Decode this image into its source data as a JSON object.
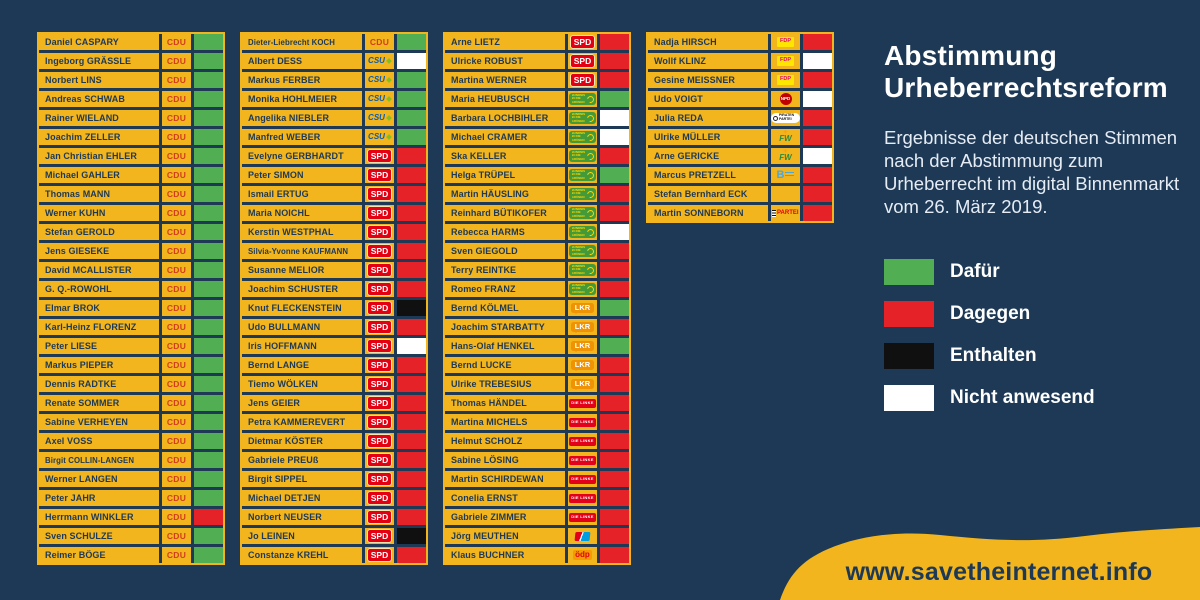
{
  "theme": {
    "background": "#1d3956",
    "yellow": "#f2b51e",
    "text_navy": "#1d3956"
  },
  "header": {
    "title_line1": "Abstimmung",
    "title_line2": "Urheberrechtsreform",
    "subtitle": "Ergebnisse der deutschen Stimmen nach der Abstimmung zum Urheberrecht im digital Binnenmarkt vom 26. März 2019."
  },
  "legend": [
    {
      "key": "dafuer",
      "label": "Dafür"
    },
    {
      "key": "dagegen",
      "label": "Dagegen"
    },
    {
      "key": "enthalten",
      "label": "Enthalten"
    },
    {
      "key": "nicht_anwesend",
      "label": "Nicht anwesend"
    }
  ],
  "vote_colors": {
    "dafuer": "#52ae52",
    "dagegen": "#e52228",
    "enthalten": "#101010",
    "nicht_anwesend": "#ffffff"
  },
  "footer": {
    "url": "www.savetheinternet.info"
  },
  "parties": {
    "CDU": {
      "label": "CDU",
      "icon": "cdu-text-logo"
    },
    "CSU": {
      "label": "CSU",
      "icon": "csu-text-logo"
    },
    "SPD": {
      "label": "SPD",
      "icon": "spd-box-logo"
    },
    "GRUENE": {
      "label": "BÜNDNIS 90 DIE GRÜNEN",
      "icon": "gruene-sunflower-logo"
    },
    "LKR": {
      "label": "LKR",
      "icon": "lkr-bubble-logo"
    },
    "LINKE": {
      "label": "DIE LINKE",
      "icon": "linke-box-logo"
    },
    "AFD": {
      "label": "",
      "icon": "afd-logo"
    },
    "OEDP": {
      "label": "ödp",
      "icon": "oedp-box-logo"
    },
    "FDP": {
      "label": "FDP",
      "icon": "fdp-box-logo"
    },
    "NPD": {
      "label": "NPD",
      "icon": "npd-circle-logo"
    },
    "PIRATEN": {
      "label": "PIRATEN PARTEI",
      "icon": "piraten-logo"
    },
    "FW": {
      "label": "FW",
      "icon": "freie-waehler-logo"
    },
    "BLAUE": {
      "label": "B",
      "icon": "blaue-partei-logo"
    },
    "PARTEI": {
      "label": "PARTEI",
      "icon": "die-partei-logo"
    }
  },
  "chart_data": {
    "type": "table",
    "title": "Abstimmung Urheberrechtsreform",
    "vote_key": {
      "dafuer": "Dafür",
      "dagegen": "Dagegen",
      "enthalten": "Enthalten",
      "nicht_anwesend": "Nicht anwesend"
    },
    "columns": [
      {
        "rows": [
          {
            "name": "Daniel CASPARY",
            "party": "CDU",
            "vote": "dafuer"
          },
          {
            "name": "Ingeborg GRÄSSLE",
            "party": "CDU",
            "vote": "dafuer"
          },
          {
            "name": "Norbert LINS",
            "party": "CDU",
            "vote": "dafuer"
          },
          {
            "name": "Andreas SCHWAB",
            "party": "CDU",
            "vote": "dafuer"
          },
          {
            "name": "Rainer WIELAND",
            "party": "CDU",
            "vote": "dafuer"
          },
          {
            "name": "Joachim ZELLER",
            "party": "CDU",
            "vote": "dafuer"
          },
          {
            "name": "Jan Christian EHLER",
            "party": "CDU",
            "vote": "dafuer"
          },
          {
            "name": "Michael GAHLER",
            "party": "CDU",
            "vote": "dafuer"
          },
          {
            "name": "Thomas MANN",
            "party": "CDU",
            "vote": "dafuer"
          },
          {
            "name": "Werner KUHN",
            "party": "CDU",
            "vote": "dafuer"
          },
          {
            "name": "Stefan GEROLD",
            "party": "CDU",
            "vote": "dafuer"
          },
          {
            "name": "Jens GIESEKE",
            "party": "CDU",
            "vote": "dafuer"
          },
          {
            "name": "David MCALLISTER",
            "party": "CDU",
            "vote": "dafuer"
          },
          {
            "name": "G. Q.-ROWOHL",
            "party": "CDU",
            "vote": "dafuer"
          },
          {
            "name": "Elmar BROK",
            "party": "CDU",
            "vote": "dafuer"
          },
          {
            "name": "Karl-Heinz FLORENZ",
            "party": "CDU",
            "vote": "dafuer"
          },
          {
            "name": "Peter LIESE",
            "party": "CDU",
            "vote": "dafuer"
          },
          {
            "name": "Markus PIEPER",
            "party": "CDU",
            "vote": "dafuer"
          },
          {
            "name": "Dennis RADTKE",
            "party": "CDU",
            "vote": "dafuer"
          },
          {
            "name": "Renate SOMMER",
            "party": "CDU",
            "vote": "dafuer"
          },
          {
            "name": "Sabine VERHEYEN",
            "party": "CDU",
            "vote": "dafuer"
          },
          {
            "name": "Axel VOSS",
            "party": "CDU",
            "vote": "dafuer"
          },
          {
            "name": "Birgit COLLIN-LANGEN",
            "party": "CDU",
            "vote": "dafuer"
          },
          {
            "name": "Werner LANGEN",
            "party": "CDU",
            "vote": "dafuer"
          },
          {
            "name": "Peter JAHR",
            "party": "CDU",
            "vote": "dafuer"
          },
          {
            "name": "Herrmann WINKLER",
            "party": "CDU",
            "vote": "dagegen"
          },
          {
            "name": "Sven SCHULZE",
            "party": "CDU",
            "vote": "dafuer"
          },
          {
            "name": "Reimer BÖGE",
            "party": "CDU",
            "vote": "dafuer"
          }
        ]
      },
      {
        "rows": [
          {
            "name": "Dieter-Liebrecht KOCH",
            "party": "CDU",
            "vote": "dafuer"
          },
          {
            "name": "Albert DESS",
            "party": "CSU",
            "vote": "nicht_anwesend"
          },
          {
            "name": "Markus FERBER",
            "party": "CSU",
            "vote": "dafuer"
          },
          {
            "name": "Monika HOHLMEIER",
            "party": "CSU",
            "vote": "dafuer"
          },
          {
            "name": "Angelika NIEBLER",
            "party": "CSU",
            "vote": "dafuer"
          },
          {
            "name": "Manfred WEBER",
            "party": "CSU",
            "vote": "dafuer"
          },
          {
            "name": "Evelyne GERBHARDT",
            "party": "SPD",
            "vote": "dagegen"
          },
          {
            "name": "Peter SIMON",
            "party": "SPD",
            "vote": "dagegen"
          },
          {
            "name": "Ismail ERTUG",
            "party": "SPD",
            "vote": "dagegen"
          },
          {
            "name": "Maria NOICHL",
            "party": "SPD",
            "vote": "dagegen"
          },
          {
            "name": "Kerstin WESTPHAL",
            "party": "SPD",
            "vote": "dagegen"
          },
          {
            "name": "Silvia-Yvonne KAUFMANN",
            "party": "SPD",
            "vote": "dagegen"
          },
          {
            "name": "Susanne MELIOR",
            "party": "SPD",
            "vote": "dagegen"
          },
          {
            "name": "Joachim SCHUSTER",
            "party": "SPD",
            "vote": "dagegen"
          },
          {
            "name": "Knut FLECKENSTEIN",
            "party": "SPD",
            "vote": "enthalten"
          },
          {
            "name": "Udo BULLMANN",
            "party": "SPD",
            "vote": "dagegen"
          },
          {
            "name": "Iris HOFFMANN",
            "party": "SPD",
            "vote": "nicht_anwesend"
          },
          {
            "name": "Bernd LANGE",
            "party": "SPD",
            "vote": "dagegen"
          },
          {
            "name": "Tiemo WÖLKEN",
            "party": "SPD",
            "vote": "dagegen"
          },
          {
            "name": "Jens GEIER",
            "party": "SPD",
            "vote": "dagegen"
          },
          {
            "name": "Petra KAMMEREVERT",
            "party": "SPD",
            "vote": "dagegen"
          },
          {
            "name": "Dietmar KÖSTER",
            "party": "SPD",
            "vote": "dagegen"
          },
          {
            "name": "Gabriele PREUß",
            "party": "SPD",
            "vote": "dagegen"
          },
          {
            "name": "Birgit SIPPEL",
            "party": "SPD",
            "vote": "dagegen"
          },
          {
            "name": "Michael DETJEN",
            "party": "SPD",
            "vote": "dagegen"
          },
          {
            "name": "Norbert NEUSER",
            "party": "SPD",
            "vote": "dagegen"
          },
          {
            "name": "Jo LEINEN",
            "party": "SPD",
            "vote": "enthalten"
          },
          {
            "name": "Constanze KREHL",
            "party": "SPD",
            "vote": "dagegen"
          }
        ]
      },
      {
        "rows": [
          {
            "name": "Arne LIETZ",
            "party": "SPD",
            "vote": "dagegen"
          },
          {
            "name": "Ulricke ROBUST",
            "party": "SPD",
            "vote": "dagegen"
          },
          {
            "name": "Martina WERNER",
            "party": "SPD",
            "vote": "dagegen"
          },
          {
            "name": "Maria HEUBUSCH",
            "party": "GRUENE",
            "vote": "dafuer"
          },
          {
            "name": "Barbara LOCHBIHLER",
            "party": "GRUENE",
            "vote": "nicht_anwesend"
          },
          {
            "name": "Michael CRAMER",
            "party": "GRUENE",
            "vote": "nicht_anwesend"
          },
          {
            "name": "Ska KELLER",
            "party": "GRUENE",
            "vote": "dagegen"
          },
          {
            "name": "Helga TRÜPEL",
            "party": "GRUENE",
            "vote": "dafuer"
          },
          {
            "name": "Martin HÄUSLING",
            "party": "GRUENE",
            "vote": "dagegen"
          },
          {
            "name": "Reinhard BÜTIKOFER",
            "party": "GRUENE",
            "vote": "dagegen"
          },
          {
            "name": "Rebecca HARMS",
            "party": "GRUENE",
            "vote": "nicht_anwesend"
          },
          {
            "name": "Sven GIEGOLD",
            "party": "GRUENE",
            "vote": "dagegen"
          },
          {
            "name": "Terry REINTKE",
            "party": "GRUENE",
            "vote": "dagegen"
          },
          {
            "name": "Romeo FRANZ",
            "party": "GRUENE",
            "vote": "dagegen"
          },
          {
            "name": "Bernd KÖLMEL",
            "party": "LKR",
            "vote": "dafuer"
          },
          {
            "name": "Joachim STARBATTY",
            "party": "LKR",
            "vote": "dagegen"
          },
          {
            "name": "Hans-Olaf HENKEL",
            "party": "LKR",
            "vote": "dafuer"
          },
          {
            "name": "Bernd LUCKE",
            "party": "LKR",
            "vote": "dagegen"
          },
          {
            "name": "Ulrike TREBESIUS",
            "party": "LKR",
            "vote": "dagegen"
          },
          {
            "name": "Thomas HÄNDEL",
            "party": "LINKE",
            "vote": "dagegen"
          },
          {
            "name": "Martina MICHELS",
            "party": "LINKE",
            "vote": "dagegen"
          },
          {
            "name": "Helmut SCHOLZ",
            "party": "LINKE",
            "vote": "dagegen"
          },
          {
            "name": "Sabine LÖSING",
            "party": "LINKE",
            "vote": "dagegen"
          },
          {
            "name": "Martin SCHIRDEWAN",
            "party": "LINKE",
            "vote": "dagegen"
          },
          {
            "name": "Conelia ERNST",
            "party": "LINKE",
            "vote": "dagegen"
          },
          {
            "name": "Gabriele ZIMMER",
            "party": "LINKE",
            "vote": "dagegen"
          },
          {
            "name": "Jörg MEUTHEN",
            "party": "AFD",
            "vote": "dagegen"
          },
          {
            "name": "Klaus BUCHNER",
            "party": "OEDP",
            "vote": "dagegen"
          }
        ]
      },
      {
        "rows": [
          {
            "name": "Nadja HIRSCH",
            "party": "FDP",
            "vote": "dagegen"
          },
          {
            "name": "Wollf KLINZ",
            "party": "FDP",
            "vote": "nicht_anwesend"
          },
          {
            "name": "Gesine MEISSNER",
            "party": "FDP",
            "vote": "dagegen"
          },
          {
            "name": "Udo VOIGT",
            "party": "NPD",
            "vote": "nicht_anwesend"
          },
          {
            "name": "Julia REDA",
            "party": "PIRATEN",
            "vote": "dagegen"
          },
          {
            "name": "Ulrike MÜLLER",
            "party": "FW",
            "vote": "dagegen"
          },
          {
            "name": "Arne GERICKE",
            "party": "FW",
            "vote": "nicht_anwesend"
          },
          {
            "name": "Marcus PRETZELL",
            "party": "BLAUE",
            "vote": "dagegen"
          },
          {
            "name": "Stefan Bernhard ECK",
            "party": "NONE",
            "vote": "dagegen"
          },
          {
            "name": "Martin SONNEBORN",
            "party": "PARTEI",
            "vote": "dagegen"
          }
        ]
      }
    ]
  }
}
